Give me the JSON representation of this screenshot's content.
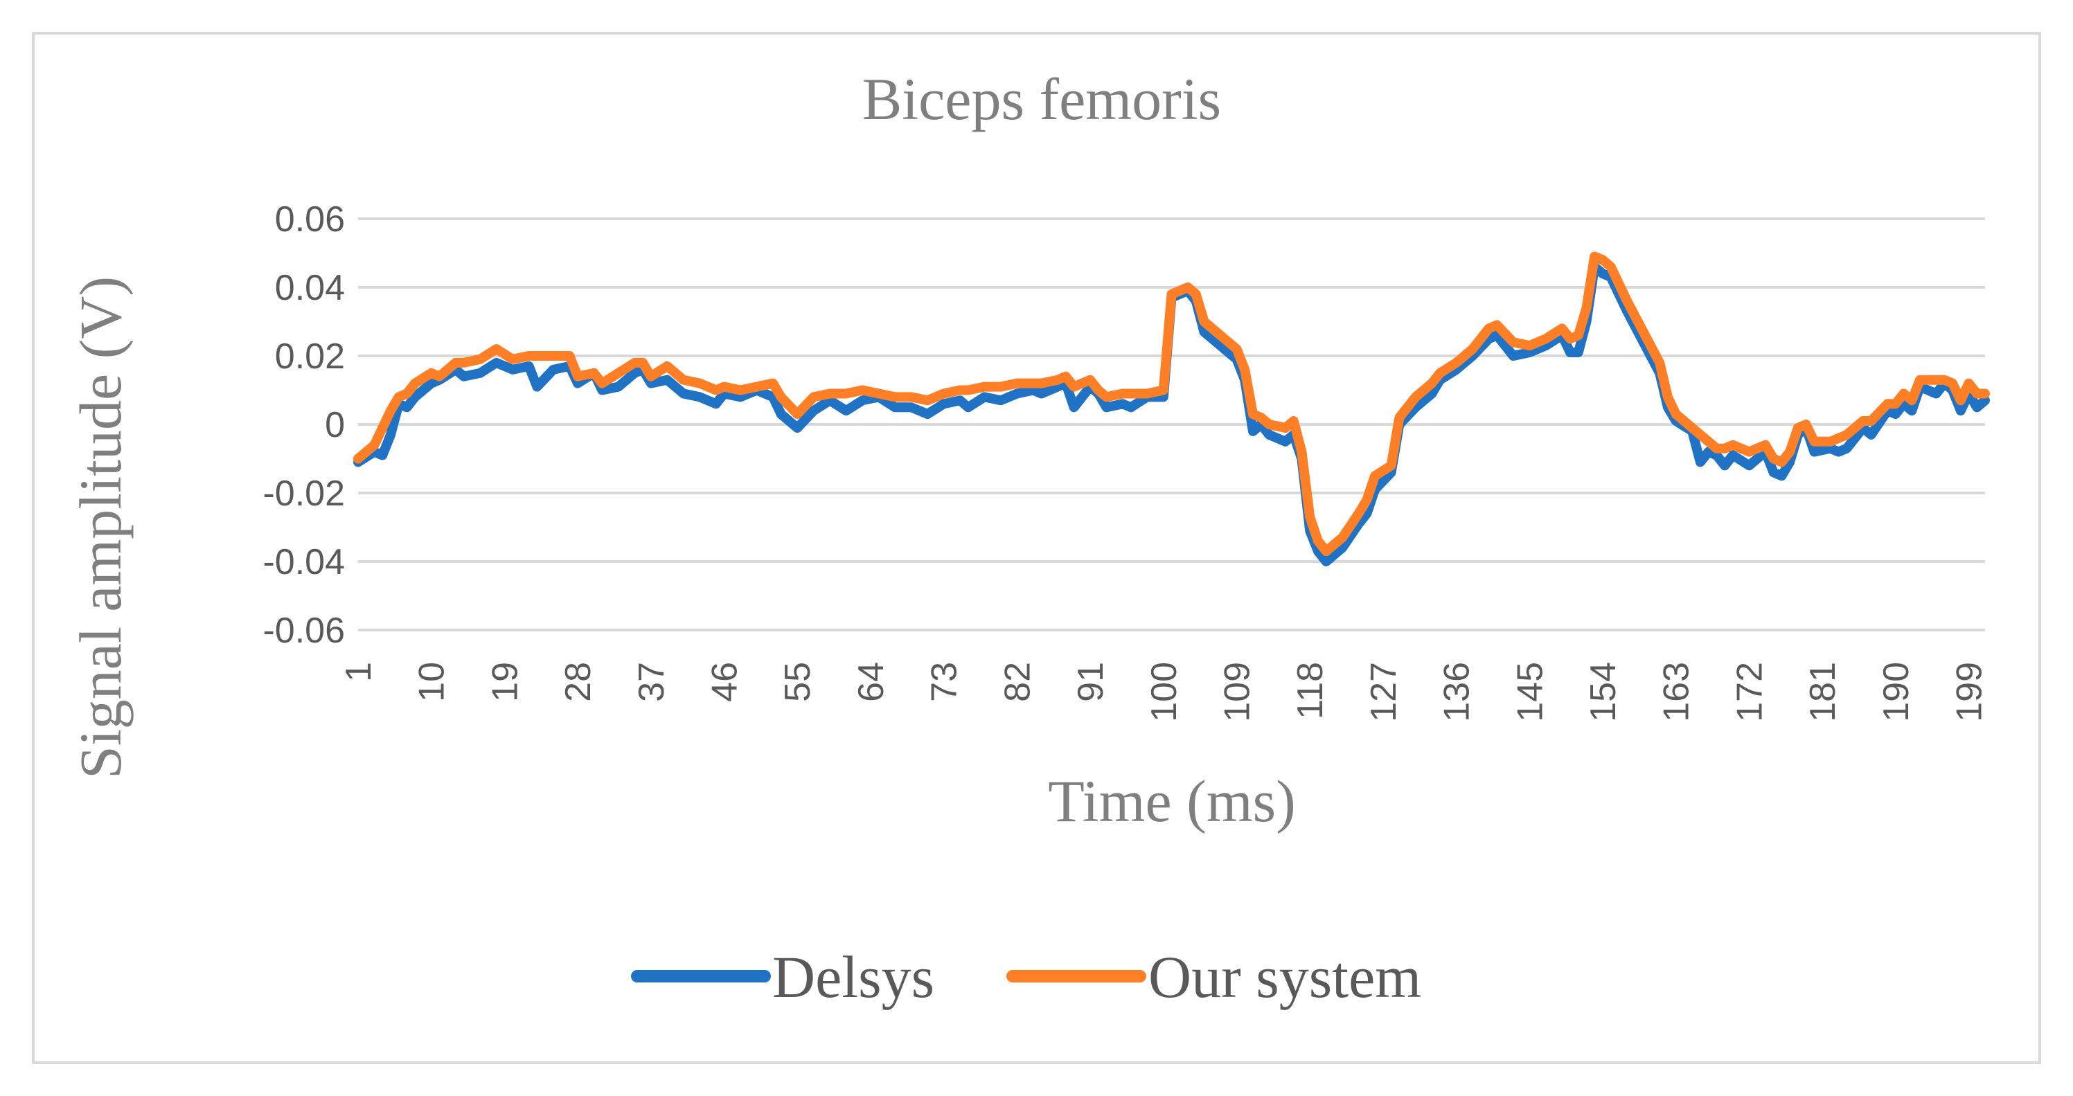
{
  "chart_data": {
    "type": "line",
    "title": "Biceps femoris",
    "xlabel": "Time (ms)",
    "ylabel": "Signal amplitude (V)",
    "ylim": [
      -0.06,
      0.06
    ],
    "y_ticks": [
      0.06,
      0.04,
      0.02,
      0,
      -0.02,
      -0.04,
      -0.06
    ],
    "y_tick_labels": [
      "0.06",
      "0.04",
      "0.02",
      "0",
      "-0.02",
      "-0.04",
      "-0.06"
    ],
    "x_range": [
      1,
      201
    ],
    "x_ticks": [
      1,
      10,
      19,
      28,
      37,
      46,
      55,
      64,
      73,
      82,
      91,
      100,
      109,
      118,
      127,
      136,
      145,
      154,
      163,
      172,
      181,
      190,
      199
    ],
    "x_tick_labels": [
      "1",
      "10",
      "19",
      "28",
      "37",
      "46",
      "55",
      "64",
      "73",
      "82",
      "91",
      "100",
      "109",
      "118",
      "127",
      "136",
      "145",
      "154",
      "163",
      "172",
      "181",
      "190",
      "199"
    ],
    "grid": true,
    "legend_position": "bottom",
    "series": [
      {
        "name": "Delsys",
        "color": "#1f72c4",
        "points": [
          [
            1,
            -0.011
          ],
          [
            3,
            -0.008
          ],
          [
            4,
            -0.009
          ],
          [
            5,
            -0.003
          ],
          [
            6,
            0.006
          ],
          [
            7,
            0.005
          ],
          [
            8,
            0.008
          ],
          [
            10,
            0.012
          ],
          [
            11,
            0.013
          ],
          [
            13,
            0.016
          ],
          [
            14,
            0.014
          ],
          [
            16,
            0.015
          ],
          [
            18,
            0.018
          ],
          [
            20,
            0.016
          ],
          [
            22,
            0.017
          ],
          [
            23,
            0.011
          ],
          [
            25,
            0.016
          ],
          [
            27,
            0.017
          ],
          [
            28,
            0.012
          ],
          [
            30,
            0.015
          ],
          [
            31,
            0.01
          ],
          [
            33,
            0.011
          ],
          [
            35,
            0.015
          ],
          [
            36,
            0.016
          ],
          [
            37,
            0.012
          ],
          [
            39,
            0.013
          ],
          [
            41,
            0.009
          ],
          [
            43,
            0.008
          ],
          [
            45,
            0.006
          ],
          [
            46,
            0.009
          ],
          [
            48,
            0.008
          ],
          [
            50,
            0.01
          ],
          [
            52,
            0.008
          ],
          [
            53,
            0.003
          ],
          [
            55,
            -0.001
          ],
          [
            57,
            0.004
          ],
          [
            59,
            0.007
          ],
          [
            61,
            0.004
          ],
          [
            63,
            0.007
          ],
          [
            65,
            0.008
          ],
          [
            67,
            0.005
          ],
          [
            69,
            0.005
          ],
          [
            71,
            0.003
          ],
          [
            73,
            0.006
          ],
          [
            75,
            0.007
          ],
          [
            76,
            0.005
          ],
          [
            78,
            0.008
          ],
          [
            80,
            0.007
          ],
          [
            82,
            0.009
          ],
          [
            84,
            0.01
          ],
          [
            85,
            0.009
          ],
          [
            87,
            0.011
          ],
          [
            88,
            0.012
          ],
          [
            89,
            0.005
          ],
          [
            91,
            0.011
          ],
          [
            92,
            0.009
          ],
          [
            93,
            0.005
          ],
          [
            95,
            0.006
          ],
          [
            96,
            0.005
          ],
          [
            98,
            0.008
          ],
          [
            100,
            0.008
          ],
          [
            101,
            0.037
          ],
          [
            103,
            0.039
          ],
          [
            104,
            0.036
          ],
          [
            105,
            0.027
          ],
          [
            107,
            0.023
          ],
          [
            109,
            0.019
          ],
          [
            110,
            0.013
          ],
          [
            111,
            -0.002
          ],
          [
            112,
            0.0
          ],
          [
            113,
            -0.003
          ],
          [
            115,
            -0.005
          ],
          [
            116,
            -0.003
          ],
          [
            117,
            -0.01
          ],
          [
            118,
            -0.031
          ],
          [
            119,
            -0.037
          ],
          [
            120,
            -0.04
          ],
          [
            122,
            -0.036
          ],
          [
            124,
            -0.029
          ],
          [
            125,
            -0.026
          ],
          [
            126,
            -0.019
          ],
          [
            128,
            -0.014
          ],
          [
            129,
            0.0
          ],
          [
            131,
            0.005
          ],
          [
            133,
            0.009
          ],
          [
            134,
            0.013
          ],
          [
            136,
            0.016
          ],
          [
            138,
            0.02
          ],
          [
            140,
            0.025
          ],
          [
            141,
            0.026
          ],
          [
            143,
            0.02
          ],
          [
            145,
            0.021
          ],
          [
            147,
            0.023
          ],
          [
            149,
            0.026
          ],
          [
            150,
            0.021
          ],
          [
            151,
            0.021
          ],
          [
            152,
            0.03
          ],
          [
            153,
            0.046
          ],
          [
            154,
            0.044
          ],
          [
            155,
            0.043
          ],
          [
            157,
            0.033
          ],
          [
            159,
            0.024
          ],
          [
            161,
            0.015
          ],
          [
            162,
            0.005
          ],
          [
            163,
            0.001
          ],
          [
            165,
            -0.002
          ],
          [
            166,
            -0.011
          ],
          [
            167,
            -0.008
          ],
          [
            168,
            -0.009
          ],
          [
            169,
            -0.012
          ],
          [
            170,
            -0.009
          ],
          [
            172,
            -0.012
          ],
          [
            174,
            -0.008
          ],
          [
            175,
            -0.014
          ],
          [
            176,
            -0.015
          ],
          [
            177,
            -0.011
          ],
          [
            178,
            -0.003
          ],
          [
            179,
            -0.001
          ],
          [
            180,
            -0.008
          ],
          [
            182,
            -0.007
          ],
          [
            183,
            -0.008
          ],
          [
            184,
            -0.007
          ],
          [
            186,
            -0.001
          ],
          [
            187,
            -0.003
          ],
          [
            189,
            0.004
          ],
          [
            190,
            0.003
          ],
          [
            191,
            0.006
          ],
          [
            192,
            0.004
          ],
          [
            193,
            0.011
          ],
          [
            195,
            0.009
          ],
          [
            196,
            0.012
          ],
          [
            197,
            0.01
          ],
          [
            198,
            0.004
          ],
          [
            199,
            0.009
          ],
          [
            200,
            0.005
          ],
          [
            201,
            0.007
          ]
        ]
      },
      {
        "name": "Our system",
        "color": "#ff7f27",
        "points": [
          [
            1,
            -0.01
          ],
          [
            3,
            -0.006
          ],
          [
            4,
            -0.001
          ],
          [
            5,
            0.004
          ],
          [
            6,
            0.008
          ],
          [
            7,
            0.009
          ],
          [
            8,
            0.012
          ],
          [
            10,
            0.015
          ],
          [
            11,
            0.014
          ],
          [
            13,
            0.018
          ],
          [
            14,
            0.018
          ],
          [
            16,
            0.019
          ],
          [
            18,
            0.022
          ],
          [
            20,
            0.019
          ],
          [
            22,
            0.02
          ],
          [
            23,
            0.02
          ],
          [
            25,
            0.02
          ],
          [
            27,
            0.02
          ],
          [
            28,
            0.014
          ],
          [
            30,
            0.015
          ],
          [
            31,
            0.012
          ],
          [
            33,
            0.015
          ],
          [
            35,
            0.018
          ],
          [
            36,
            0.018
          ],
          [
            37,
            0.014
          ],
          [
            39,
            0.017
          ],
          [
            41,
            0.013
          ],
          [
            43,
            0.012
          ],
          [
            45,
            0.01
          ],
          [
            46,
            0.011
          ],
          [
            48,
            0.01
          ],
          [
            50,
            0.011
          ],
          [
            52,
            0.012
          ],
          [
            53,
            0.008
          ],
          [
            55,
            0.003
          ],
          [
            57,
            0.008
          ],
          [
            59,
            0.009
          ],
          [
            61,
            0.009
          ],
          [
            63,
            0.01
          ],
          [
            65,
            0.009
          ],
          [
            67,
            0.008
          ],
          [
            69,
            0.008
          ],
          [
            71,
            0.007
          ],
          [
            73,
            0.009
          ],
          [
            75,
            0.01
          ],
          [
            76,
            0.01
          ],
          [
            78,
            0.011
          ],
          [
            80,
            0.011
          ],
          [
            82,
            0.012
          ],
          [
            84,
            0.012
          ],
          [
            85,
            0.012
          ],
          [
            87,
            0.013
          ],
          [
            88,
            0.014
          ],
          [
            89,
            0.011
          ],
          [
            91,
            0.013
          ],
          [
            92,
            0.01
          ],
          [
            93,
            0.008
          ],
          [
            95,
            0.009
          ],
          [
            96,
            0.009
          ],
          [
            98,
            0.009
          ],
          [
            100,
            0.01
          ],
          [
            101,
            0.038
          ],
          [
            103,
            0.04
          ],
          [
            104,
            0.038
          ],
          [
            105,
            0.03
          ],
          [
            107,
            0.026
          ],
          [
            109,
            0.022
          ],
          [
            110,
            0.016
          ],
          [
            111,
            0.003
          ],
          [
            112,
            0.002
          ],
          [
            113,
            0.0
          ],
          [
            115,
            -0.001
          ],
          [
            116,
            0.001
          ],
          [
            117,
            -0.008
          ],
          [
            118,
            -0.027
          ],
          [
            119,
            -0.034
          ],
          [
            120,
            -0.037
          ],
          [
            122,
            -0.033
          ],
          [
            124,
            -0.026
          ],
          [
            125,
            -0.022
          ],
          [
            126,
            -0.015
          ],
          [
            128,
            -0.012
          ],
          [
            129,
            0.002
          ],
          [
            131,
            0.008
          ],
          [
            133,
            0.012
          ],
          [
            134,
            0.015
          ],
          [
            136,
            0.018
          ],
          [
            138,
            0.022
          ],
          [
            140,
            0.028
          ],
          [
            141,
            0.029
          ],
          [
            143,
            0.024
          ],
          [
            145,
            0.023
          ],
          [
            147,
            0.025
          ],
          [
            149,
            0.028
          ],
          [
            150,
            0.025
          ],
          [
            151,
            0.026
          ],
          [
            152,
            0.034
          ],
          [
            153,
            0.049
          ],
          [
            154,
            0.048
          ],
          [
            155,
            0.046
          ],
          [
            157,
            0.036
          ],
          [
            159,
            0.027
          ],
          [
            161,
            0.018
          ],
          [
            162,
            0.008
          ],
          [
            163,
            0.003
          ],
          [
            165,
            -0.001
          ],
          [
            166,
            -0.003
          ],
          [
            167,
            -0.005
          ],
          [
            168,
            -0.007
          ],
          [
            169,
            -0.007
          ],
          [
            170,
            -0.006
          ],
          [
            172,
            -0.008
          ],
          [
            174,
            -0.006
          ],
          [
            175,
            -0.01
          ],
          [
            176,
            -0.011
          ],
          [
            177,
            -0.008
          ],
          [
            178,
            -0.001
          ],
          [
            179,
            0.0
          ],
          [
            180,
            -0.005
          ],
          [
            182,
            -0.005
          ],
          [
            183,
            -0.004
          ],
          [
            184,
            -0.003
          ],
          [
            186,
            0.001
          ],
          [
            187,
            0.001
          ],
          [
            189,
            0.006
          ],
          [
            190,
            0.006
          ],
          [
            191,
            0.009
          ],
          [
            192,
            0.007
          ],
          [
            193,
            0.013
          ],
          [
            195,
            0.013
          ],
          [
            196,
            0.013
          ],
          [
            197,
            0.012
          ],
          [
            198,
            0.007
          ],
          [
            199,
            0.012
          ],
          [
            200,
            0.009
          ],
          [
            201,
            0.009
          ]
        ]
      }
    ]
  }
}
